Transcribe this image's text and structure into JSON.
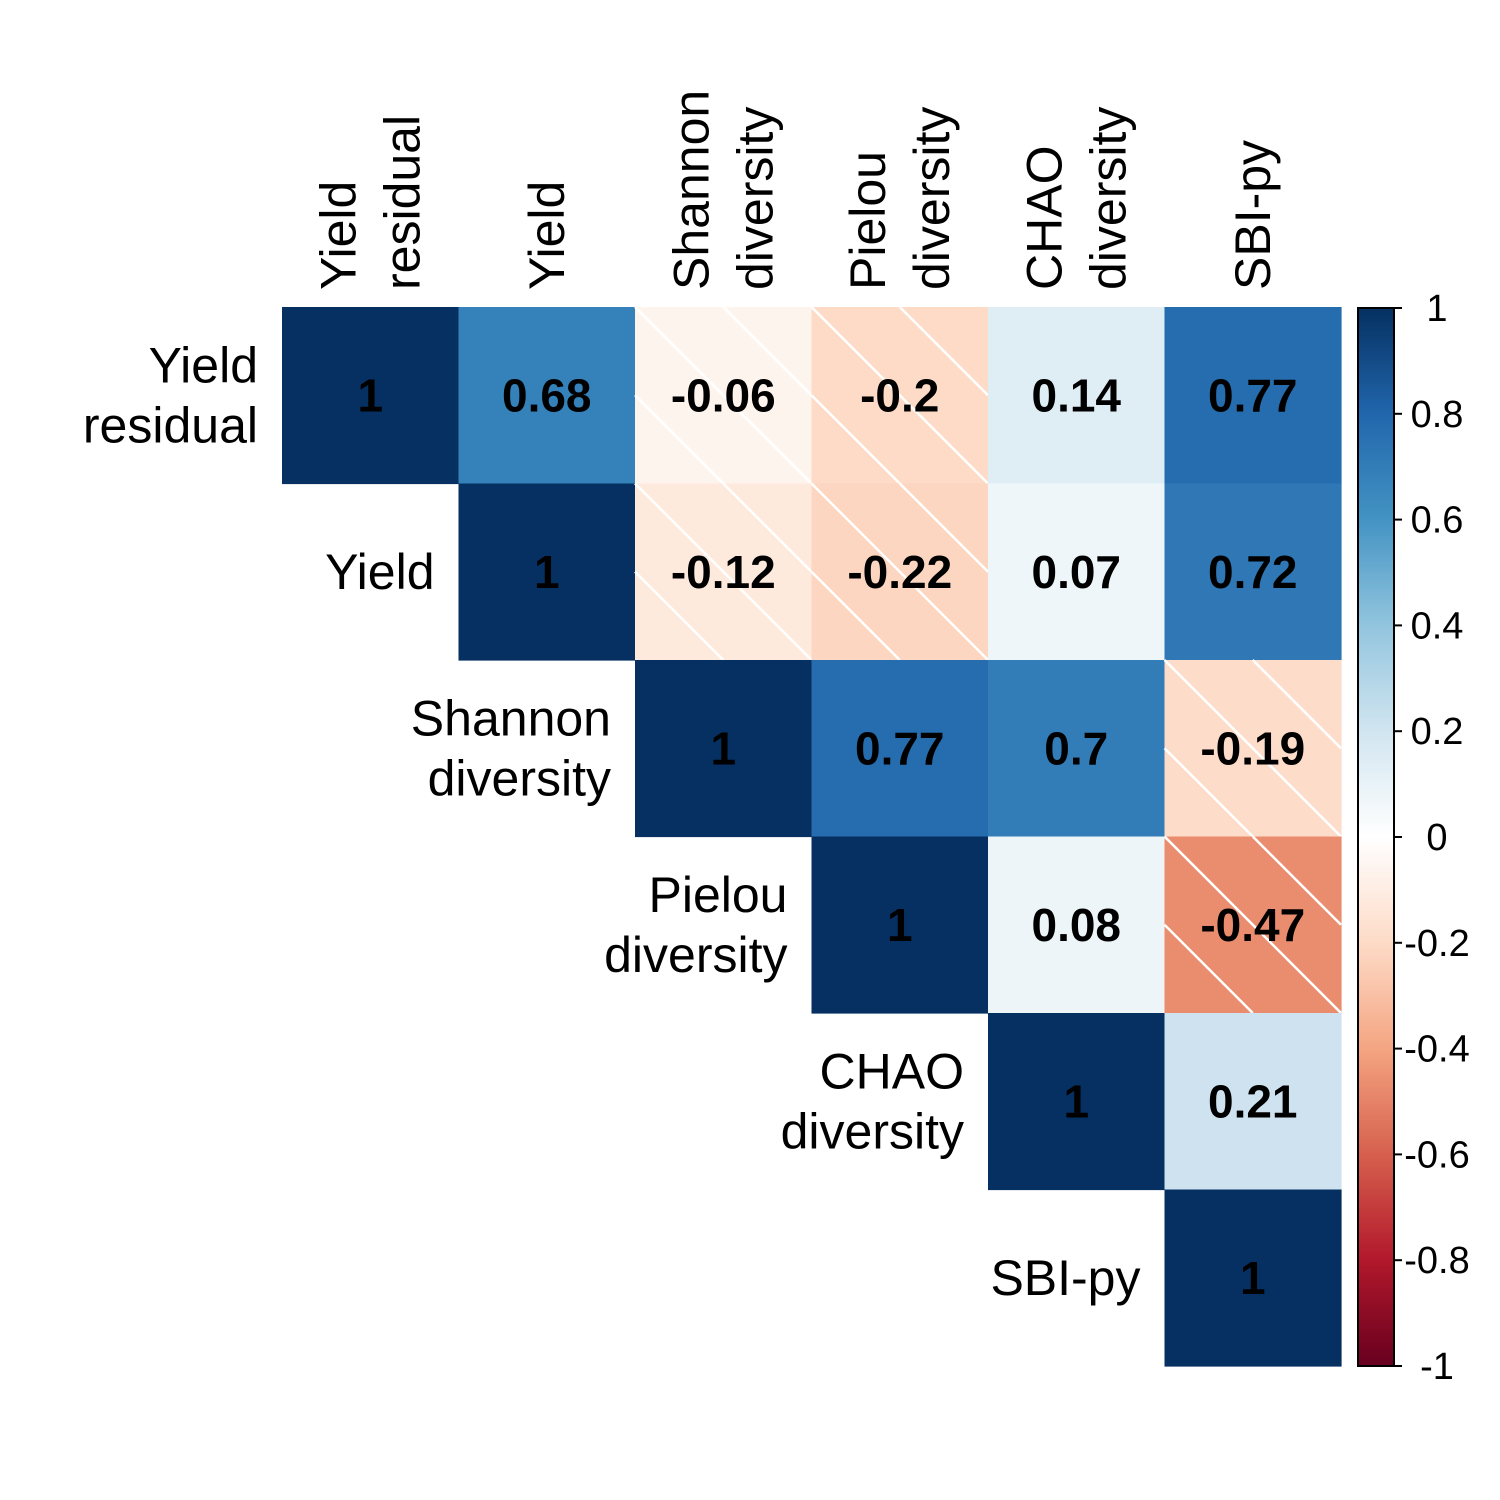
{
  "chart_data": {
    "type": "heatmap",
    "variables": [
      [
        "Yield",
        "residual"
      ],
      [
        "Yield"
      ],
      [
        "Shannon",
        "diversity"
      ],
      [
        "Pielou",
        "diversity"
      ],
      [
        "CHAO",
        "diversity"
      ],
      [
        "SBI-py"
      ]
    ],
    "matrix": [
      [
        1,
        0.68,
        -0.06,
        -0.2,
        0.14,
        0.77
      ],
      [
        null,
        1,
        -0.12,
        -0.22,
        0.07,
        0.72
      ],
      [
        null,
        null,
        1,
        0.77,
        0.7,
        -0.19
      ],
      [
        null,
        null,
        null,
        1,
        0.08,
        -0.47
      ],
      [
        null,
        null,
        null,
        null,
        1,
        0.21
      ],
      [
        null,
        null,
        null,
        null,
        null,
        1
      ]
    ],
    "value_labels": [
      [
        "1",
        "0.68",
        "-0.06",
        "-0.2",
        "0.14",
        "0.77"
      ],
      [
        "",
        "1",
        "-0.12",
        "-0.22",
        "0.07",
        "0.72"
      ],
      [
        "",
        "",
        "1",
        "0.77",
        "0.7",
        "-0.19"
      ],
      [
        "",
        "",
        "",
        "1",
        "0.08",
        "-0.47"
      ],
      [
        "",
        "",
        "",
        "",
        "1",
        "0.21"
      ],
      [
        "",
        "",
        "",
        "",
        "",
        "1"
      ]
    ],
    "triangle": "upper",
    "negative_cells_hatched": true,
    "colorbar": {
      "range": [
        -1,
        1
      ],
      "ticks": [
        1,
        0.8,
        0.6,
        0.4,
        0.2,
        0,
        -0.2,
        -0.4,
        -0.6,
        -0.8,
        -1
      ],
      "tick_labels": [
        "1",
        "0.8",
        "0.6",
        "0.4",
        "0.2",
        "0",
        "-0.2",
        "-0.4",
        "-0.6",
        "-0.8",
        "-1"
      ],
      "colors": [
        "#67001F",
        "#B2182B",
        "#D6604D",
        "#F4A582",
        "#FDDBC7",
        "#FFFFFF",
        "#D1E5F0",
        "#92C5DE",
        "#4393C3",
        "#2166AC",
        "#053061"
      ]
    },
    "title": "",
    "xlabel": "",
    "ylabel": ""
  }
}
